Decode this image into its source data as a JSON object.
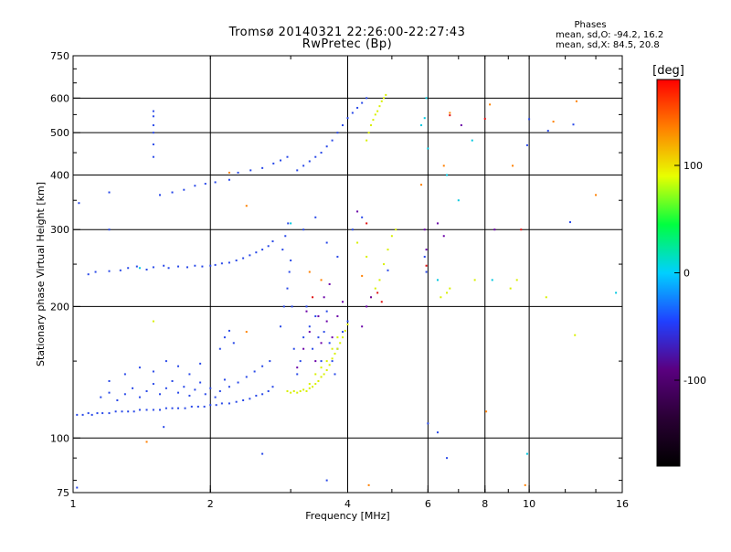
{
  "chart_data": {
    "type": "scatter",
    "title": "Tromsø 20140321 22:26:00-22:27:43",
    "subtitle": "RwPretec (Bp)",
    "info_header": "Phases",
    "info_lines": [
      "mean, sd,O: -94.2, 16.2",
      "mean, sd,X:  84.5, 20.8"
    ],
    "xlabel": "Frequency [MHz]",
    "ylabel": "Stationary phase Virtual Height [km]",
    "xscale": "log",
    "yscale": "log",
    "xlim": [
      1,
      16
    ],
    "ylim": [
      75,
      750
    ],
    "xticks": [
      1,
      2,
      4,
      6,
      8,
      10,
      16
    ],
    "xtick_labels": [
      "1",
      "2",
      "4",
      "6",
      "8",
      "10",
      "16"
    ],
    "yticks": [
      75,
      100,
      200,
      300,
      400,
      500,
      600,
      750
    ],
    "ytick_labels": [
      "75",
      "100",
      "200",
      "300",
      "400",
      "500",
      "600",
      "750"
    ],
    "x_gridlines": [
      2,
      4,
      6,
      8,
      10
    ],
    "y_gridlines": [
      100,
      200,
      300,
      400,
      500,
      600
    ],
    "colorbar": {
      "label": "[deg]",
      "range": [
        -180,
        180
      ],
      "ticks": [
        -100,
        0,
        100
      ],
      "tick_labels": [
        "-100",
        "0",
        "100"
      ],
      "colors": [
        "#000000",
        "#2a0035",
        "#5a0080",
        "#2040ff",
        "#00d0ff",
        "#00ff40",
        "#e8ff00",
        "#ff8000",
        "#ff0000"
      ]
    },
    "series": [
      {
        "mode": "O",
        "color": "#2848e8",
        "points": [
          [
            1.02,
            113
          ],
          [
            1.05,
            113
          ],
          [
            1.08,
            114
          ],
          [
            1.1,
            113
          ],
          [
            1.13,
            114
          ],
          [
            1.16,
            114
          ],
          [
            1.2,
            114
          ],
          [
            1.24,
            115
          ],
          [
            1.28,
            115
          ],
          [
            1.32,
            115
          ],
          [
            1.36,
            115
          ],
          [
            1.4,
            116
          ],
          [
            1.45,
            116
          ],
          [
            1.5,
            116
          ],
          [
            1.55,
            116
          ],
          [
            1.6,
            117
          ],
          [
            1.65,
            117
          ],
          [
            1.7,
            117
          ],
          [
            1.76,
            117
          ],
          [
            1.82,
            118
          ],
          [
            1.88,
            118
          ],
          [
            1.94,
            118
          ],
          [
            2.0,
            119
          ],
          [
            2.06,
            119
          ],
          [
            2.12,
            120
          ],
          [
            2.2,
            120
          ],
          [
            2.28,
            121
          ],
          [
            2.36,
            122
          ],
          [
            2.44,
            123
          ],
          [
            2.52,
            125
          ],
          [
            2.6,
            126
          ],
          [
            2.68,
            128
          ],
          [
            2.74,
            131
          ],
          [
            1.15,
            124
          ],
          [
            1.2,
            127
          ],
          [
            1.25,
            122
          ],
          [
            1.3,
            126
          ],
          [
            1.35,
            130
          ],
          [
            1.4,
            124
          ],
          [
            1.45,
            128
          ],
          [
            1.5,
            133
          ],
          [
            1.55,
            126
          ],
          [
            1.6,
            130
          ],
          [
            1.65,
            135
          ],
          [
            1.7,
            127
          ],
          [
            1.75,
            131
          ],
          [
            1.8,
            125
          ],
          [
            1.85,
            129
          ],
          [
            1.9,
            134
          ],
          [
            1.95,
            126
          ],
          [
            2.0,
            130
          ],
          [
            2.05,
            124
          ],
          [
            2.1,
            128
          ],
          [
            2.15,
            136
          ],
          [
            2.2,
            131
          ],
          [
            2.3,
            134
          ],
          [
            2.4,
            138
          ],
          [
            2.5,
            142
          ],
          [
            2.6,
            146
          ],
          [
            2.7,
            150
          ],
          [
            1.2,
            135
          ],
          [
            1.3,
            140
          ],
          [
            1.4,
            145
          ],
          [
            1.5,
            142
          ],
          [
            1.6,
            150
          ],
          [
            1.7,
            146
          ],
          [
            1.8,
            140
          ],
          [
            1.9,
            148
          ],
          [
            2.1,
            160
          ],
          [
            2.15,
            170
          ],
          [
            2.2,
            176
          ],
          [
            2.25,
            165
          ],
          [
            1.08,
            237
          ],
          [
            1.12,
            240
          ],
          [
            1.2,
            241
          ],
          [
            1.27,
            242
          ],
          [
            1.32,
            245
          ],
          [
            1.38,
            247
          ],
          [
            1.45,
            243
          ],
          [
            1.5,
            246
          ],
          [
            1.58,
            248
          ],
          [
            1.62,
            245
          ],
          [
            1.7,
            247
          ],
          [
            1.78,
            246
          ],
          [
            1.85,
            248
          ],
          [
            1.92,
            247
          ],
          [
            2.0,
            248
          ],
          [
            2.05,
            249
          ],
          [
            2.12,
            251
          ],
          [
            2.2,
            252
          ],
          [
            2.28,
            255
          ],
          [
            2.36,
            258
          ],
          [
            2.44,
            262
          ],
          [
            2.52,
            266
          ],
          [
            2.6,
            270
          ],
          [
            2.68,
            275
          ],
          [
            2.74,
            282
          ],
          [
            1.55,
            360
          ],
          [
            1.65,
            365
          ],
          [
            1.75,
            370
          ],
          [
            1.85,
            378
          ],
          [
            1.95,
            382
          ],
          [
            2.05,
            385
          ],
          [
            2.2,
            390
          ],
          [
            2.3,
            405
          ],
          [
            2.45,
            410
          ],
          [
            2.6,
            415
          ],
          [
            2.75,
            425
          ],
          [
            2.85,
            432
          ],
          [
            2.95,
            440
          ],
          [
            3.1,
            410
          ],
          [
            3.2,
            420
          ],
          [
            3.3,
            430
          ],
          [
            3.4,
            440
          ],
          [
            3.5,
            450
          ],
          [
            3.6,
            465
          ],
          [
            3.7,
            480
          ],
          [
            3.8,
            500
          ],
          [
            3.9,
            520
          ],
          [
            4.0,
            540
          ],
          [
            4.1,
            555
          ],
          [
            4.2,
            570
          ],
          [
            4.3,
            585
          ],
          [
            4.4,
            600
          ],
          [
            2.85,
            180
          ],
          [
            2.9,
            200
          ],
          [
            2.95,
            220
          ],
          [
            2.98,
            240
          ],
          [
            3.0,
            255
          ],
          [
            3.02,
            200
          ],
          [
            3.05,
            160
          ],
          [
            3.1,
            140
          ],
          [
            3.15,
            150
          ],
          [
            3.2,
            170
          ],
          [
            3.25,
            200
          ],
          [
            3.3,
            180
          ],
          [
            3.35,
            160
          ],
          [
            3.4,
            190
          ],
          [
            3.45,
            170
          ],
          [
            3.5,
            150
          ],
          [
            3.55,
            175
          ],
          [
            3.6,
            195
          ],
          [
            3.65,
            165
          ],
          [
            3.7,
            150
          ],
          [
            3.75,
            140
          ],
          [
            3.8,
            160
          ],
          [
            3.9,
            175
          ],
          [
            4.0,
            185
          ],
          [
            2.88,
            270
          ],
          [
            2.92,
            290
          ],
          [
            2.96,
            310
          ],
          [
            3.2,
            300
          ],
          [
            3.4,
            320
          ],
          [
            3.6,
            280
          ],
          [
            3.8,
            260
          ],
          [
            4.1,
            300
          ],
          [
            4.3,
            320
          ],
          [
            1.5,
            440
          ],
          [
            1.5,
            470
          ],
          [
            1.5,
            500
          ],
          [
            1.5,
            520
          ],
          [
            1.5,
            545
          ],
          [
            1.5,
            560
          ],
          [
            1.03,
            345
          ],
          [
            1.2,
            300
          ],
          [
            1.2,
            365
          ],
          [
            1.02,
            77
          ],
          [
            2.6,
            92
          ],
          [
            1.58,
            106
          ],
          [
            6.0,
            108
          ],
          [
            6.3,
            103
          ],
          [
            6.6,
            90
          ],
          [
            9.9,
            468
          ],
          [
            10.0,
            537
          ],
          [
            11.0,
            505
          ],
          [
            12.3,
            312
          ],
          [
            12.5,
            522
          ],
          [
            3.6,
            80
          ],
          [
            4.9,
            242
          ],
          [
            5.9,
            260
          ],
          [
            5.95,
            240
          ]
        ]
      },
      {
        "mode": "X",
        "color": "#d8f000",
        "points": [
          [
            2.95,
            128
          ],
          [
            3.0,
            127
          ],
          [
            3.05,
            128
          ],
          [
            3.1,
            127
          ],
          [
            3.15,
            128
          ],
          [
            3.2,
            129
          ],
          [
            3.25,
            128
          ],
          [
            3.3,
            130
          ],
          [
            3.35,
            131
          ],
          [
            3.4,
            133
          ],
          [
            3.45,
            135
          ],
          [
            3.5,
            138
          ],
          [
            3.55,
            140
          ],
          [
            3.6,
            143
          ],
          [
            3.65,
            147
          ],
          [
            3.7,
            152
          ],
          [
            3.75,
            156
          ],
          [
            3.8,
            160
          ],
          [
            3.85,
            165
          ],
          [
            3.9,
            170
          ],
          [
            3.95,
            176
          ],
          [
            4.0,
            182
          ],
          [
            3.3,
            133
          ],
          [
            3.4,
            140
          ],
          [
            3.5,
            145
          ],
          [
            3.6,
            150
          ],
          [
            3.7,
            160
          ],
          [
            3.8,
            170
          ],
          [
            4.4,
            480
          ],
          [
            4.45,
            500
          ],
          [
            4.5,
            520
          ],
          [
            4.55,
            535
          ],
          [
            4.6,
            550
          ],
          [
            4.65,
            560
          ],
          [
            4.7,
            575
          ],
          [
            4.75,
            590
          ],
          [
            4.8,
            600
          ],
          [
            4.85,
            610
          ],
          [
            4.7,
            230
          ],
          [
            4.8,
            250
          ],
          [
            4.9,
            270
          ],
          [
            5.0,
            290
          ],
          [
            5.1,
            300
          ],
          [
            4.6,
            220
          ],
          [
            4.5,
            210
          ],
          [
            6.4,
            210
          ],
          [
            6.6,
            215
          ],
          [
            6.7,
            220
          ],
          [
            7.6,
            230
          ],
          [
            9.1,
            220
          ],
          [
            9.4,
            230
          ],
          [
            10.9,
            210
          ],
          [
            12.6,
            172
          ],
          [
            1.5,
            185
          ],
          [
            4.2,
            280
          ],
          [
            4.4,
            260
          ]
        ]
      },
      {
        "mode": "outliers",
        "color": "#ff8000",
        "points": [
          [
            1.45,
            98
          ],
          [
            2.4,
            175
          ],
          [
            2.4,
            340
          ],
          [
            3.5,
            230
          ],
          [
            4.3,
            235
          ],
          [
            5.8,
            380
          ],
          [
            6.5,
            420
          ],
          [
            6.7,
            555
          ],
          [
            8.2,
            580
          ],
          [
            9.2,
            420
          ],
          [
            11.3,
            530
          ],
          [
            12.7,
            590
          ],
          [
            14.0,
            360
          ],
          [
            4.45,
            78
          ],
          [
            9.8,
            78
          ],
          [
            8.05,
            115
          ],
          [
            3.3,
            240
          ],
          [
            2.2,
            405
          ]
        ]
      },
      {
        "mode": "cyan",
        "color": "#00c8e0",
        "points": [
          [
            5.9,
            540
          ],
          [
            5.95,
            600
          ],
          [
            6.0,
            460
          ],
          [
            6.3,
            230
          ],
          [
            6.6,
            400
          ],
          [
            7.0,
            350
          ],
          [
            7.5,
            480
          ],
          [
            9.9,
            92
          ],
          [
            8.3,
            230
          ],
          [
            15.5,
            215
          ],
          [
            5.8,
            520
          ],
          [
            1.4,
            245
          ],
          [
            3.0,
            310
          ]
        ]
      },
      {
        "mode": "purple",
        "color": "#6a00a8",
        "points": [
          [
            3.2,
            160
          ],
          [
            3.3,
            175
          ],
          [
            3.4,
            150
          ],
          [
            3.5,
            165
          ],
          [
            3.6,
            185
          ],
          [
            3.7,
            170
          ],
          [
            3.8,
            190
          ],
          [
            3.9,
            205
          ],
          [
            3.45,
            190
          ],
          [
            3.55,
            210
          ],
          [
            3.65,
            225
          ],
          [
            3.1,
            145
          ],
          [
            3.25,
            195
          ],
          [
            4.3,
            180
          ],
          [
            4.4,
            200
          ],
          [
            4.5,
            210
          ],
          [
            4.2,
            330
          ],
          [
            5.95,
            270
          ],
          [
            5.9,
            300
          ],
          [
            6.3,
            310
          ],
          [
            6.5,
            290
          ],
          [
            8.4,
            300
          ],
          [
            7.1,
            520
          ]
        ]
      },
      {
        "mode": "red",
        "color": "#e01010",
        "points": [
          [
            4.65,
            215
          ],
          [
            4.75,
            205
          ],
          [
            5.95,
            248
          ],
          [
            6.7,
            548
          ],
          [
            8.0,
            538
          ],
          [
            3.35,
            210
          ],
          [
            4.4,
            310
          ],
          [
            9.6,
            300
          ]
        ]
      }
    ]
  }
}
